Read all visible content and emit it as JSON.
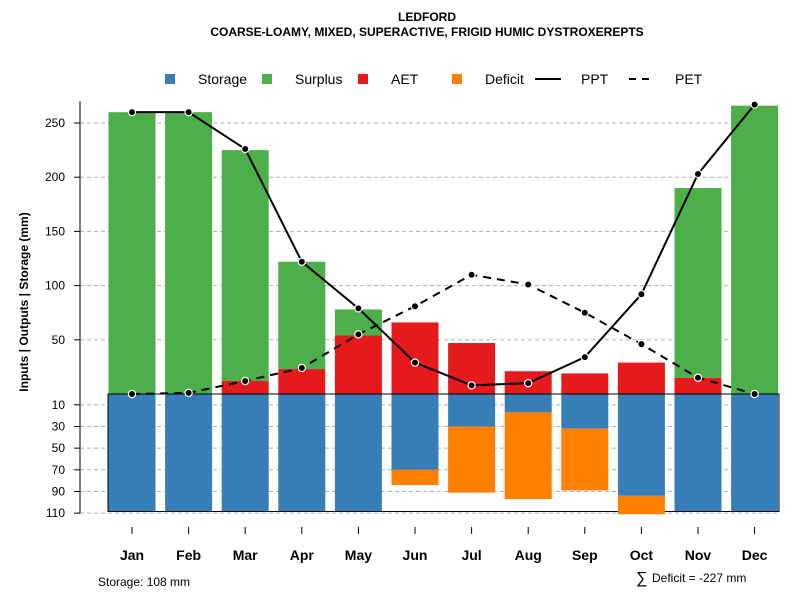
{
  "chart_data": {
    "type": "bar",
    "title": "LEDFORD",
    "subtitle": "COARSE-LOAMY, MIXED, SUPERACTIVE, FRIGID HUMIC DYSTROXEREPTS",
    "ylabel": "Inputs | Outputs | Storage    (mm)",
    "categories": [
      "Jan",
      "Feb",
      "Mar",
      "Apr",
      "May",
      "Jun",
      "Jul",
      "Aug",
      "Sep",
      "Oct",
      "Nov",
      "Dec"
    ],
    "legend": [
      {
        "label": "Storage",
        "color": "#377EB8",
        "kind": "box"
      },
      {
        "label": "Surplus",
        "color": "#4DAF4A",
        "kind": "box"
      },
      {
        "label": "AET",
        "color": "#E41A1C",
        "kind": "box"
      },
      {
        "label": "Deficit",
        "color": "#FF7F00",
        "kind": "box"
      },
      {
        "label": "PPT",
        "color": "#000000",
        "kind": "solid"
      },
      {
        "label": "PET",
        "color": "#000000",
        "kind": "dashed"
      }
    ],
    "upper_axis": {
      "ticks": [
        50,
        100,
        150,
        200,
        250
      ],
      "ylim": [
        0,
        270
      ]
    },
    "lower_axis": {
      "ticks": [
        10,
        30,
        50,
        70,
        90,
        110
      ],
      "ylim": [
        0,
        108
      ]
    },
    "series": [
      {
        "name": "Surplus",
        "values": [
          260,
          260,
          213,
          99,
          24,
          0,
          0,
          0,
          0,
          0,
          175,
          266
        ]
      },
      {
        "name": "AET",
        "values": [
          0,
          0,
          12,
          23,
          54,
          66,
          47,
          21,
          19,
          29,
          15,
          0
        ]
      },
      {
        "name": "Storage",
        "values": [
          108,
          108,
          108,
          108,
          108,
          70,
          30,
          17,
          32,
          94,
          108,
          108
        ]
      },
      {
        "name": "Deficit",
        "values": [
          0,
          0,
          0,
          0,
          0,
          14,
          61,
          80,
          57,
          17,
          0,
          0
        ]
      },
      {
        "name": "PPT",
        "values": [
          260,
          260,
          226,
          122,
          79,
          29,
          8,
          10,
          34,
          92,
          203,
          267
        ]
      },
      {
        "name": "PET",
        "values": [
          0,
          1,
          12,
          24,
          55,
          81,
          110,
          101,
          75,
          46,
          15,
          0
        ]
      }
    ],
    "grid": true,
    "legend_position": "top"
  },
  "footer": {
    "storage_label": "Storage: 108 mm",
    "deficit_symbol": "∑",
    "deficit_label": "Deficit = -227 mm"
  },
  "colors": {
    "storage": "#377EB8",
    "surplus": "#4DAF4A",
    "aet": "#E41A1C",
    "deficit": "#FF7F00",
    "grid": "#b0b0b0"
  }
}
